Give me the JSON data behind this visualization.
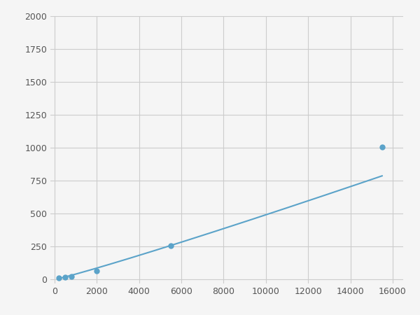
{
  "x": [
    200,
    500,
    800,
    2000,
    5500,
    15500
  ],
  "y": [
    10,
    20,
    25,
    65,
    255,
    1005
  ],
  "line_color": "#5BA3C9",
  "marker_color": "#5BA3C9",
  "marker_size": 5,
  "line_width": 1.5,
  "xlim": [
    -200,
    16500
  ],
  "ylim": [
    -30,
    2000
  ],
  "xticks": [
    0,
    2000,
    4000,
    6000,
    8000,
    10000,
    12000,
    14000,
    16000
  ],
  "yticks": [
    0,
    250,
    500,
    750,
    1000,
    1250,
    1500,
    1750,
    2000
  ],
  "grid": true,
  "background_color": "#f5f5f5",
  "plot_bg_color": "#f5f5f5"
}
